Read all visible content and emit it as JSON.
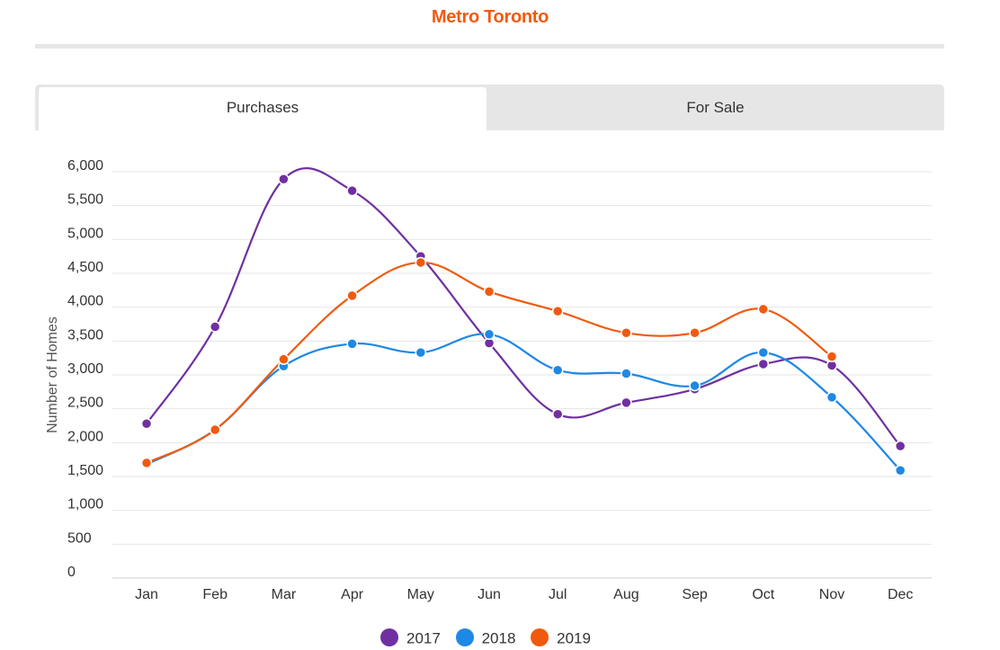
{
  "header": {
    "title": "Metro Toronto",
    "title_color": "#f05a0f"
  },
  "tabs": [
    {
      "label": "Purchases",
      "active": true
    },
    {
      "label": "For Sale",
      "active": false
    }
  ],
  "chart_data": {
    "type": "line",
    "smooth": true,
    "title": "",
    "xlabel": "",
    "ylabel": "Number of Homes",
    "ylim": [
      0,
      6000
    ],
    "yticks": [
      0,
      500,
      1000,
      1500,
      2000,
      2500,
      3000,
      3500,
      4000,
      4500,
      5000,
      5500,
      6000
    ],
    "ytick_labels": [
      "0",
      "500",
      "1,000",
      "1,500",
      "2,000",
      "2,500",
      "3,000",
      "3,500",
      "4,000",
      "4,500",
      "5,000",
      "5,500",
      "6,000"
    ],
    "grid": true,
    "legend_position": "bottom-center",
    "categories": [
      "Jan",
      "Feb",
      "Mar",
      "Apr",
      "May",
      "Jun",
      "Jul",
      "Aug",
      "Sep",
      "Oct",
      "Nov",
      "Dec"
    ],
    "series": [
      {
        "name": "2017",
        "color": "#7030a0",
        "values": [
          2280,
          3710,
          5890,
          5720,
          4750,
          3470,
          2420,
          2590,
          2790,
          3160,
          3140,
          1950
        ]
      },
      {
        "name": "2018",
        "color": "#1e88e5",
        "values": [
          1680,
          2190,
          3130,
          3460,
          3330,
          3600,
          3070,
          3020,
          2840,
          3330,
          2670,
          1590
        ]
      },
      {
        "name": "2019",
        "color": "#f05a0f",
        "values": [
          1700,
          2190,
          3230,
          4170,
          4660,
          4230,
          3940,
          3620,
          3620,
          3970,
          3270,
          null
        ]
      }
    ]
  }
}
